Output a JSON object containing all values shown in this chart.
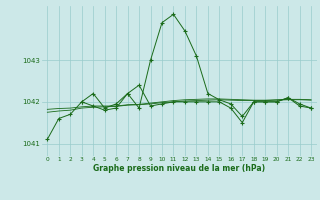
{
  "background_color": "#cce8e8",
  "grid_color": "#99cccc",
  "line_color": "#1a6b1a",
  "marker_color": "#1a6b1a",
  "xlabel": "Graphe pression niveau de la mer (hPa)",
  "xlim": [
    -0.5,
    23.5
  ],
  "ylim": [
    1040.7,
    1044.3
  ],
  "yticks": [
    1041,
    1042,
    1043
  ],
  "xticks": [
    0,
    1,
    2,
    3,
    4,
    5,
    6,
    7,
    8,
    9,
    10,
    11,
    12,
    13,
    14,
    15,
    16,
    17,
    18,
    19,
    20,
    21,
    22,
    23
  ],
  "series": [
    {
      "x": [
        0,
        1,
        2,
        3,
        4,
        5,
        6,
        7,
        8,
        9,
        10,
        11,
        12,
        13,
        14,
        15,
        16,
        17,
        18,
        19,
        20,
        21,
        22,
        23
      ],
      "y": [
        1041.1,
        1041.6,
        1041.7,
        1042.0,
        1041.9,
        1041.8,
        1041.85,
        1042.2,
        1041.85,
        1043.0,
        1043.9,
        1044.1,
        1043.7,
        1043.1,
        1042.2,
        1042.05,
        1041.95,
        1041.65,
        1042.0,
        1042.0,
        1042.0,
        1042.1,
        1041.95,
        1041.85
      ],
      "style": "line_marker"
    },
    {
      "x": [
        0,
        1,
        2,
        3,
        4,
        5,
        6,
        7,
        8,
        9,
        10,
        11,
        12,
        13,
        14,
        15,
        16,
        17,
        18,
        19,
        20,
        21,
        22,
        23
      ],
      "y": [
        1041.75,
        1041.78,
        1041.8,
        1041.85,
        1041.87,
        1041.88,
        1041.89,
        1041.92,
        1041.93,
        1041.95,
        1041.98,
        1042.0,
        1042.02,
        1042.03,
        1042.04,
        1042.05,
        1042.04,
        1042.03,
        1042.03,
        1042.03,
        1042.04,
        1042.05,
        1042.05,
        1042.04
      ],
      "style": "line_only"
    },
    {
      "x": [
        0,
        1,
        2,
        3,
        4,
        5,
        6,
        7,
        8,
        9,
        10,
        11,
        12,
        13,
        14,
        15,
        16,
        17,
        18,
        19,
        20,
        21,
        22,
        23
      ],
      "y": [
        1041.82,
        1041.84,
        1041.85,
        1041.88,
        1041.9,
        1041.9,
        1041.9,
        1041.93,
        1041.94,
        1041.97,
        1042.0,
        1042.03,
        1042.05,
        1042.06,
        1042.07,
        1042.07,
        1042.06,
        1042.05,
        1042.04,
        1042.04,
        1042.05,
        1042.06,
        1042.06,
        1042.05
      ],
      "style": "line_only"
    },
    {
      "x": [
        3,
        4,
        5,
        6,
        7,
        8,
        9,
        10,
        11,
        12,
        13,
        14,
        15,
        16,
        17,
        18,
        19,
        20,
        21,
        22,
        23
      ],
      "y": [
        1042.0,
        1042.2,
        1041.85,
        1041.95,
        1042.2,
        1042.4,
        1041.9,
        1041.95,
        1042.0,
        1042.0,
        1042.0,
        1042.0,
        1042.0,
        1041.85,
        1041.5,
        1042.0,
        1042.0,
        1042.0,
        1042.1,
        1041.9,
        1041.85
      ],
      "style": "line_marker"
    }
  ]
}
